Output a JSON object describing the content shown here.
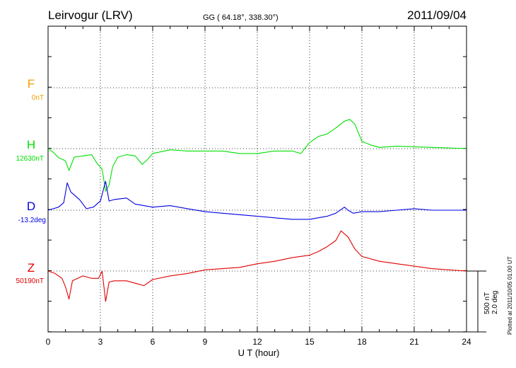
{
  "header": {
    "station": "Leirvogur (LRV)",
    "coords": "GG ( 64.18°, 338.30°)",
    "date": "2011/09/04"
  },
  "xaxis": {
    "label": "U T (hour)",
    "ticks": [
      "0",
      "3",
      "6",
      "9",
      "12",
      "15",
      "18",
      "21",
      "24"
    ]
  },
  "scale": {
    "line1": "500 nT",
    "line2": "2.0 deg"
  },
  "footer_note": "Plotted at 2011/10/05 01:00 UT",
  "colors": {
    "F": "#f0a000",
    "H": "#00e000",
    "D": "#0000e0",
    "Z": "#e00000"
  },
  "chart_data": {
    "type": "line",
    "title": "Leirvogur (LRV)",
    "xlabel": "U T (hour)",
    "ylabel": "",
    "xlim": [
      0,
      24
    ],
    "grid": true,
    "series": [
      {
        "name": "F",
        "baseline": "0nT",
        "x": [],
        "values": []
      },
      {
        "name": "H",
        "baseline": "12630nT",
        "x": [
          0,
          0.3,
          0.6,
          1.0,
          1.2,
          1.5,
          2.0,
          2.5,
          2.8,
          3.1,
          3.3,
          3.5,
          3.7,
          4.0,
          4.5,
          5.0,
          5.4,
          5.7,
          6.0,
          6.5,
          7,
          8,
          9,
          10,
          11,
          12,
          13,
          14,
          14.5,
          15,
          15.5,
          16,
          16.5,
          17,
          17.3,
          17.6,
          18,
          18.5,
          19,
          20,
          21,
          22,
          23,
          24
        ],
        "values": [
          0,
          -30,
          -75,
          -100,
          -180,
          -70,
          -60,
          -50,
          -120,
          -170,
          -350,
          -300,
          -150,
          -70,
          -50,
          -60,
          -130,
          -90,
          -40,
          -25,
          -10,
          -20,
          -20,
          -20,
          -40,
          -40,
          -20,
          -20,
          -40,
          50,
          100,
          120,
          170,
          225,
          240,
          200,
          60,
          30,
          10,
          20,
          15,
          10,
          5,
          0
        ]
      },
      {
        "name": "D",
        "baseline": "-13.2deg",
        "x": [
          0,
          0.3,
          0.6,
          0.9,
          1.1,
          1.3,
          1.8,
          2.2,
          2.6,
          3.0,
          3.3,
          3.5,
          3.8,
          4.5,
          5.0,
          5.5,
          6,
          7,
          8,
          9,
          10,
          11,
          12,
          13,
          14,
          15,
          16,
          16.5,
          17,
          17.2,
          17.5,
          18,
          19,
          20,
          21,
          22,
          23,
          24
        ],
        "values": [
          0,
          0.05,
          0.1,
          0.25,
          0.9,
          0.6,
          0.35,
          0.05,
          0.1,
          0.3,
          0.95,
          0.3,
          0.35,
          0.4,
          0.2,
          0.15,
          0.1,
          0.15,
          0.05,
          -0.05,
          -0.1,
          -0.15,
          -0.2,
          -0.25,
          -0.3,
          -0.3,
          -0.2,
          -0.1,
          0.1,
          0,
          -0.1,
          -0.05,
          -0.05,
          0,
          0.05,
          0,
          0,
          0
        ]
      },
      {
        "name": "Z",
        "baseline": "50190nT",
        "x": [
          0,
          0.4,
          0.8,
          1.0,
          1.2,
          1.4,
          2.0,
          2.5,
          2.9,
          3.1,
          3.3,
          3.5,
          3.8,
          4.5,
          5.0,
          5.5,
          6,
          7,
          8,
          9,
          10,
          11,
          12,
          13,
          14,
          15,
          15.5,
          16,
          16.5,
          16.8,
          17.2,
          17.6,
          18,
          19,
          20,
          21,
          22,
          23,
          24
        ],
        "values": [
          0,
          -20,
          -60,
          -130,
          -230,
          -80,
          -40,
          -60,
          -60,
          0,
          -250,
          -90,
          -80,
          -80,
          -100,
          -120,
          -70,
          -40,
          -20,
          10,
          20,
          30,
          60,
          80,
          110,
          130,
          160,
          200,
          250,
          330,
          280,
          180,
          120,
          80,
          60,
          40,
          20,
          10,
          0
        ]
      }
    ]
  }
}
